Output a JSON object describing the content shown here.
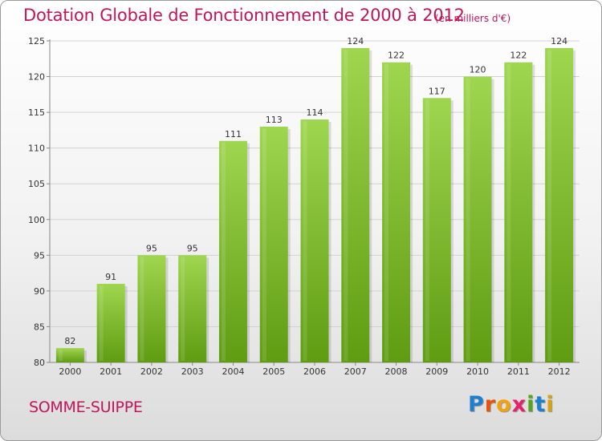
{
  "header": {
    "title": "Dotation Globale de Fonctionnement de 2000 à 2012",
    "unit": "(en milliers d'€)"
  },
  "footer": {
    "commune": "SOMME-SUIPPE",
    "brand": "Proxiti"
  },
  "colors": {
    "title": "#c0155a",
    "bar_top": "#9fd64f",
    "bar_bottom": "#5f9c12",
    "brand_letters": [
      "#1f7fcf",
      "#e8540c",
      "#f2a20a",
      "#e81f6a",
      "#53a81a",
      "#1f7fcf",
      "#d8a30e"
    ]
  },
  "chart_data": {
    "type": "bar",
    "categories": [
      "2000",
      "2001",
      "2002",
      "2003",
      "2004",
      "2005",
      "2006",
      "2007",
      "2008",
      "2009",
      "2010",
      "2011",
      "2012"
    ],
    "values": [
      82,
      91,
      95,
      95,
      111,
      113,
      114,
      124,
      122,
      117,
      120,
      122,
      124
    ],
    "title": "Dotation Globale de Fonctionnement de 2000 à 2012",
    "subtitle": "(en milliers d'€)",
    "xlabel": "",
    "ylabel": "",
    "ylim": [
      80,
      125
    ],
    "yticks": [
      80,
      85,
      90,
      95,
      100,
      105,
      110,
      115,
      120,
      125
    ],
    "grid": true,
    "data_labels": true
  }
}
